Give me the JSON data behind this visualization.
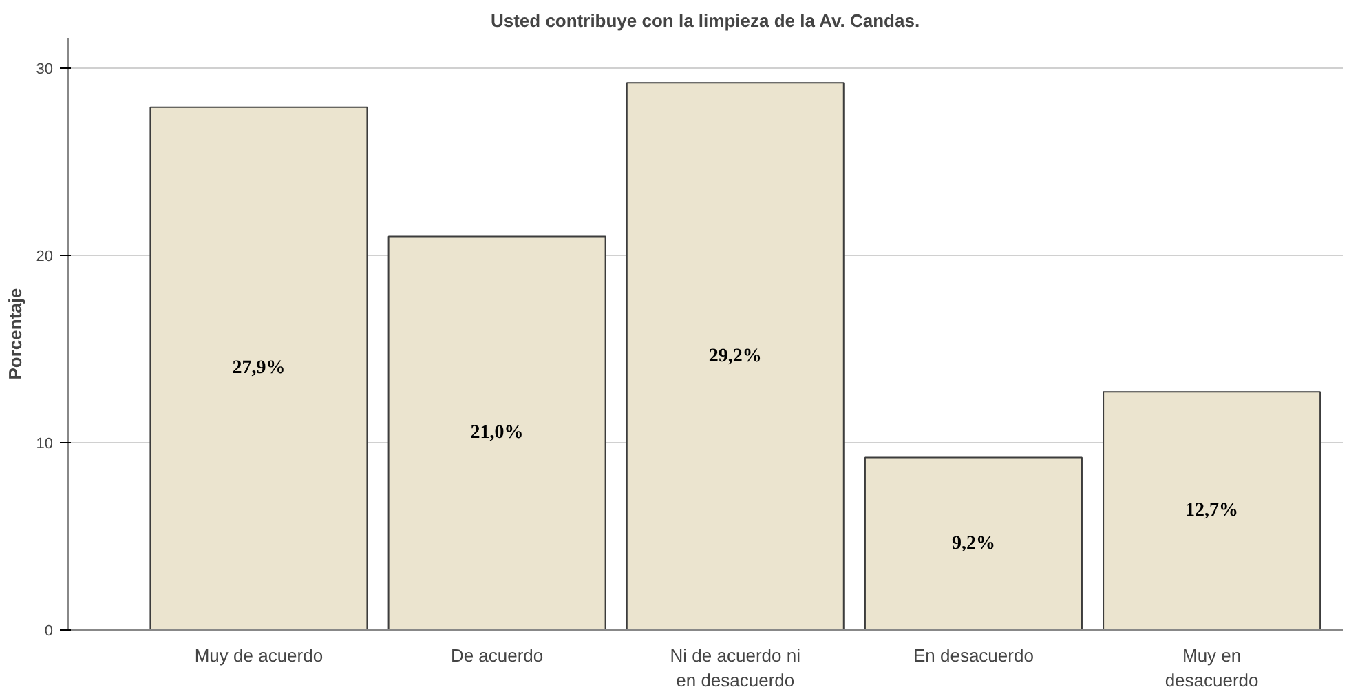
{
  "chart_data": {
    "type": "bar",
    "title": "Usted contribuye con la limpieza de la Av. Candas.",
    "ylabel": "Porcentaje",
    "categories": [
      "Muy de acuerdo",
      "De acuerdo",
      "Ni de acuerdo ni\nen desacuerdo",
      "En desacuerdo",
      "Muy en\ndesacuerdo"
    ],
    "values": [
      27.9,
      21.0,
      29.2,
      9.2,
      12.7
    ],
    "value_labels": [
      "27,9%",
      "21,0%",
      "29,2%",
      "9,2%",
      "12,7%"
    ],
    "color": "#ebe4cf",
    "ylim": [
      0,
      31.6
    ],
    "yticks": [
      0,
      10,
      20,
      30
    ],
    "grid": "y"
  }
}
